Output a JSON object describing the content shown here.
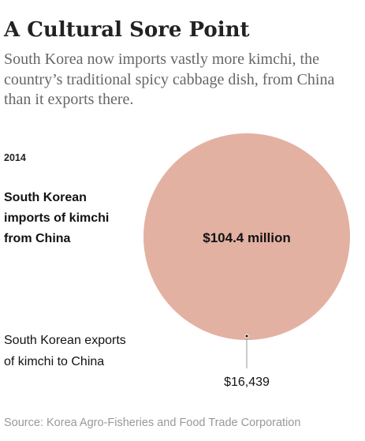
{
  "title": "A Cultural Sore Point",
  "subtitle": "South Korea now imports vastly more kimchi, the country’s traditional spicy cabbage dish, from China than it exports there.",
  "year": "2014",
  "source": "Source: Korea Agro-Fisheries and Food Trade Corporation",
  "chart_data": {
    "type": "proportional-area",
    "series": [
      {
        "name": "South Korean imports of kimchi from China",
        "value": 104400000,
        "label": "$104.4 million"
      },
      {
        "name": "South Korean exports of kimchi to China",
        "value": 16439,
        "label": "$16,439"
      }
    ],
    "colors": {
      "imports": "#e3b1a2",
      "exports": "#121212",
      "leader": "#999999"
    }
  }
}
